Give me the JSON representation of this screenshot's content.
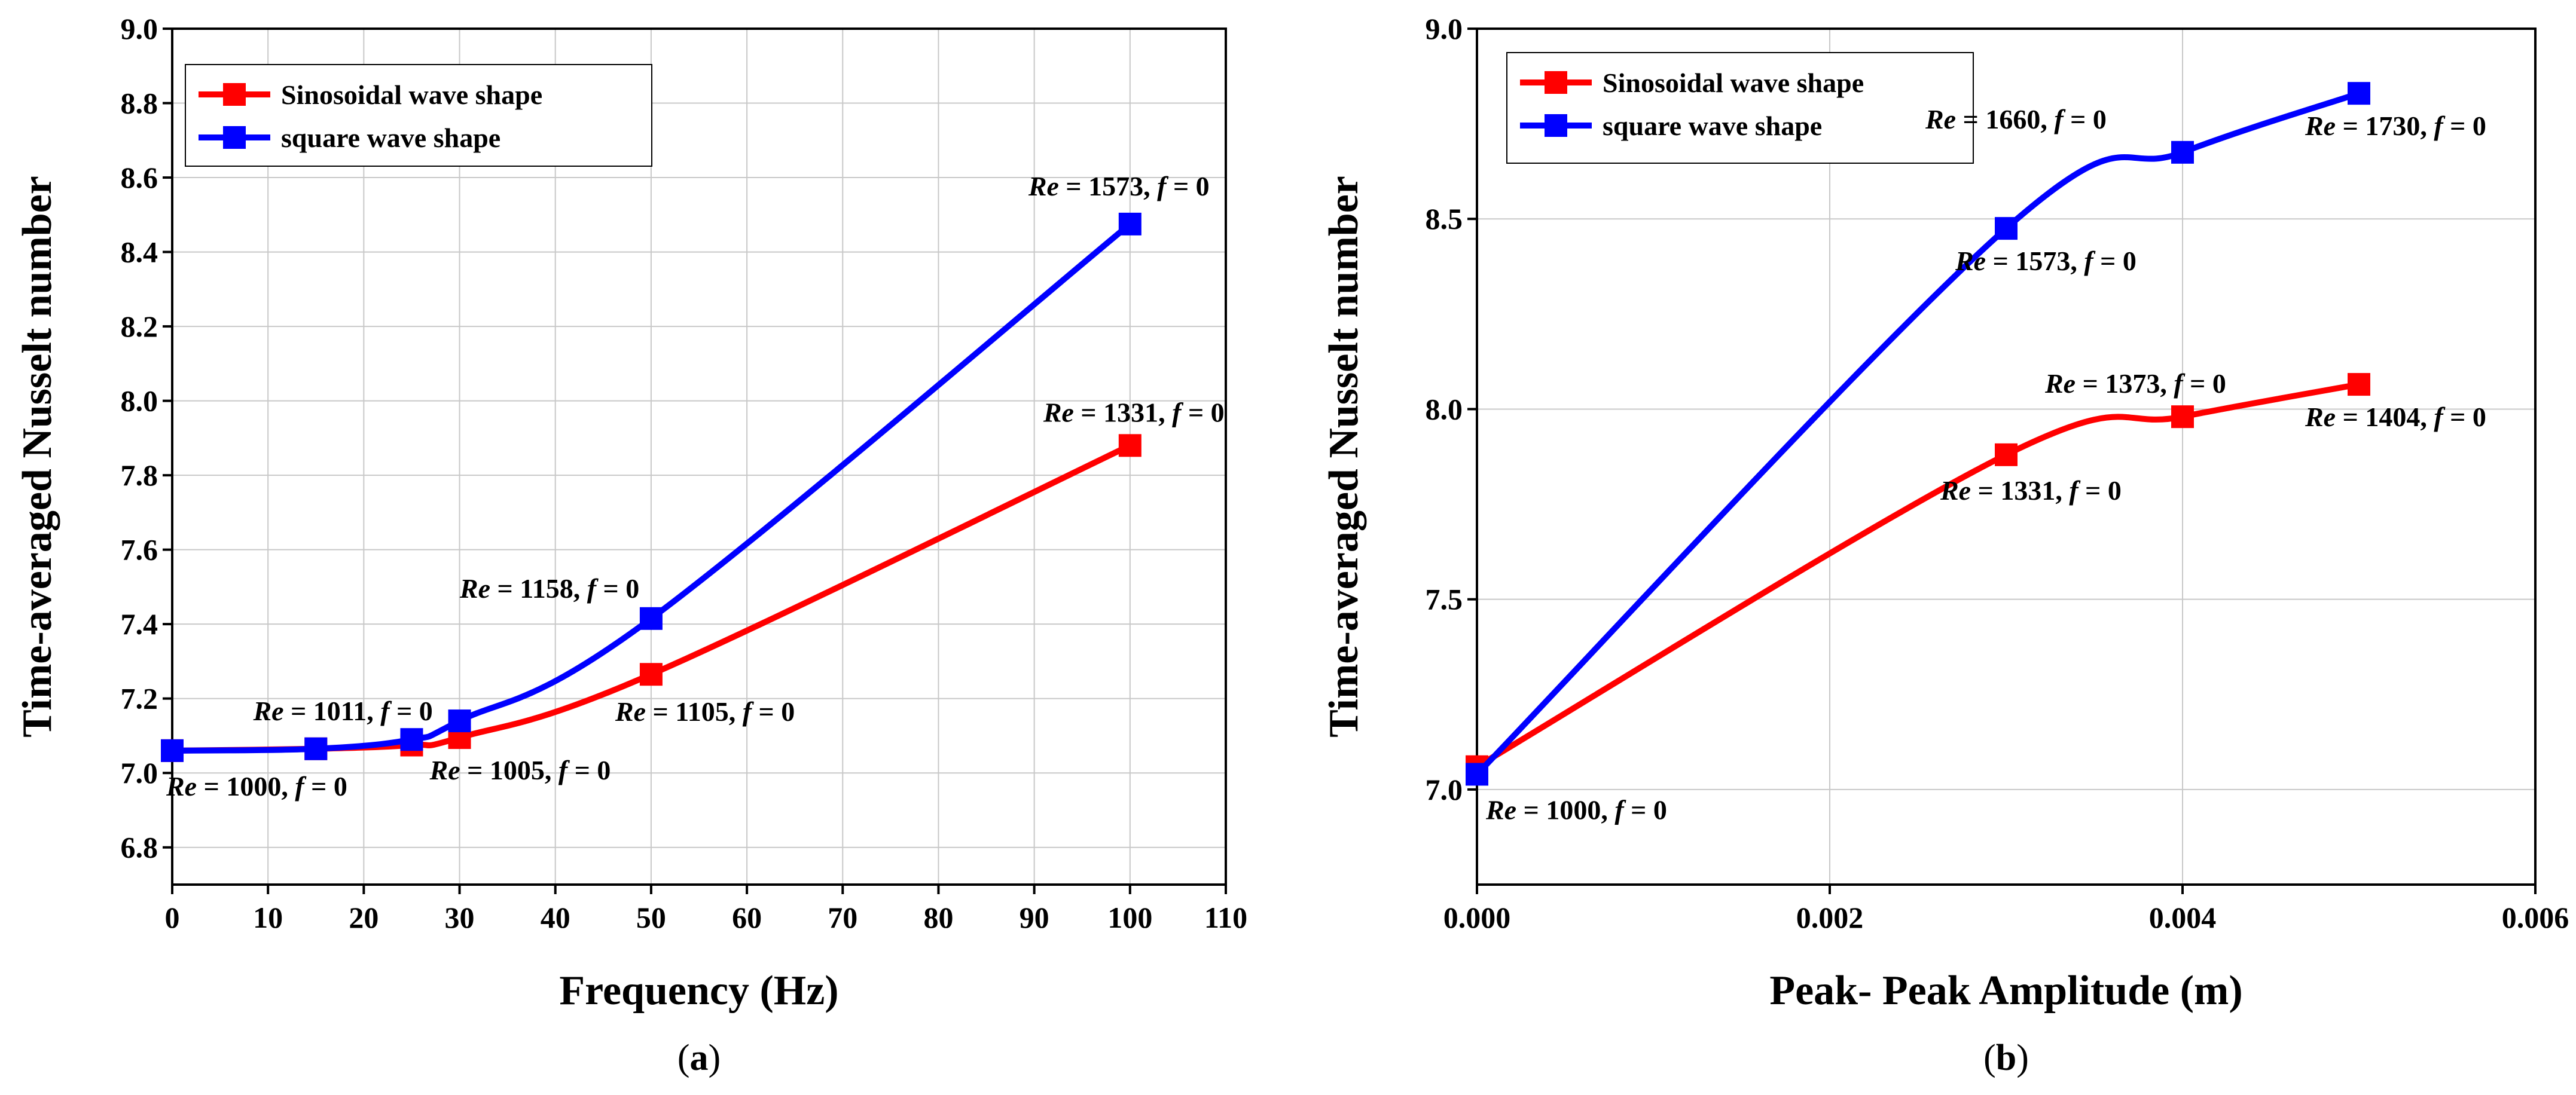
{
  "chart_data": [
    {
      "type": "line",
      "panel_label": "a",
      "xlabel": "Frequency (Hz)",
      "ylabel": "Time-averaged Nusselt number",
      "xlim": [
        0,
        110
      ],
      "ylim": [
        6.7,
        9.0
      ],
      "xticks": [
        0,
        10,
        20,
        30,
        40,
        50,
        60,
        70,
        80,
        90,
        100,
        110
      ],
      "yticks": [
        6.8,
        7.0,
        7.2,
        7.4,
        7.6,
        7.8,
        8.0,
        8.2,
        8.4,
        8.6,
        8.8,
        9.0
      ],
      "x_decimals": 0,
      "y_decimals": 1,
      "grid": true,
      "legend_position": "top-left",
      "series": [
        {
          "name": "Sinosoidal wave shape",
          "color": "#ff0000",
          "x": [
            0,
            15,
            25,
            30,
            50,
            100
          ],
          "y": [
            7.06,
            7.065,
            7.075,
            7.095,
            7.265,
            7.88
          ]
        },
        {
          "name": "square wave shape",
          "color": "#0000ff",
          "x": [
            0,
            15,
            25,
            30,
            50,
            100
          ],
          "y": [
            7.06,
            7.065,
            7.09,
            7.14,
            7.415,
            8.475
          ]
        }
      ],
      "annotations": [
        {
          "re": "1573",
          "f": "0",
          "anchor_x": 100,
          "anchor_y": 8.475,
          "placement": "above-left"
        },
        {
          "re": "1331",
          "f": "0",
          "anchor_x": 100,
          "anchor_y": 7.88,
          "placement": "above-left"
        },
        {
          "re": "1158",
          "f": "0",
          "anchor_x": 50,
          "anchor_y": 7.415,
          "placement": "above-left"
        },
        {
          "re": "1105",
          "f": "0",
          "anchor_x": 50,
          "anchor_y": 7.265,
          "placement": "below-right"
        },
        {
          "re": "1011",
          "f": "0",
          "anchor_x": 25,
          "anchor_y": 7.09,
          "placement": "above-left"
        },
        {
          "re": "1005",
          "f": "0",
          "anchor_x": 30,
          "anchor_y": 7.095,
          "placement": "below-right"
        },
        {
          "re": "1000",
          "f": "0",
          "anchor_x": 0,
          "anchor_y": 7.06,
          "placement": "below-right"
        }
      ]
    },
    {
      "type": "line",
      "panel_label": "b",
      "xlabel": "Peak- Peak Amplitude (m)",
      "ylabel": "Time-averaged Nusselt number",
      "xlim": [
        0,
        0.006
      ],
      "ylim": [
        6.75,
        9.0
      ],
      "xticks": [
        0,
        0.002,
        0.004,
        0.006
      ],
      "yticks": [
        7.0,
        7.5,
        8.0,
        8.5,
        9.0
      ],
      "x_decimals": 3,
      "y_decimals": 1,
      "grid": true,
      "legend_position": "top-left",
      "series": [
        {
          "name": "Sinosoidal wave shape",
          "color": "#ff0000",
          "x": [
            0,
            0.003,
            0.004,
            0.005
          ],
          "y": [
            7.06,
            7.88,
            7.98,
            8.065
          ]
        },
        {
          "name": "square wave shape",
          "color": "#0000ff",
          "x": [
            0,
            0.003,
            0.004,
            0.005
          ],
          "y": [
            7.04,
            8.475,
            8.675,
            8.83
          ]
        }
      ],
      "annotations": [
        {
          "re": "1660",
          "f": "0",
          "anchor_x": 0.004,
          "anchor_y": 8.675,
          "placement": "above-left"
        },
        {
          "re": "1730",
          "f": "0",
          "anchor_x": 0.005,
          "anchor_y": 8.83,
          "placement": "below-center"
        },
        {
          "re": "1573",
          "f": "0",
          "anchor_x": 0.003,
          "anchor_y": 8.475,
          "placement": "below-right"
        },
        {
          "re": "1373",
          "f": "0",
          "anchor_x": 0.004,
          "anchor_y": 7.98,
          "placement": "above-center"
        },
        {
          "re": "1404",
          "f": "0",
          "anchor_x": 0.005,
          "anchor_y": 8.065,
          "placement": "below-center"
        },
        {
          "re": "1331",
          "f": "0",
          "anchor_x": 0.003,
          "anchor_y": 7.88,
          "placement": "below-right"
        },
        {
          "re": "1000",
          "f": "0",
          "anchor_x": 0,
          "anchor_y": 7.04,
          "placement": "below-right"
        }
      ]
    }
  ]
}
